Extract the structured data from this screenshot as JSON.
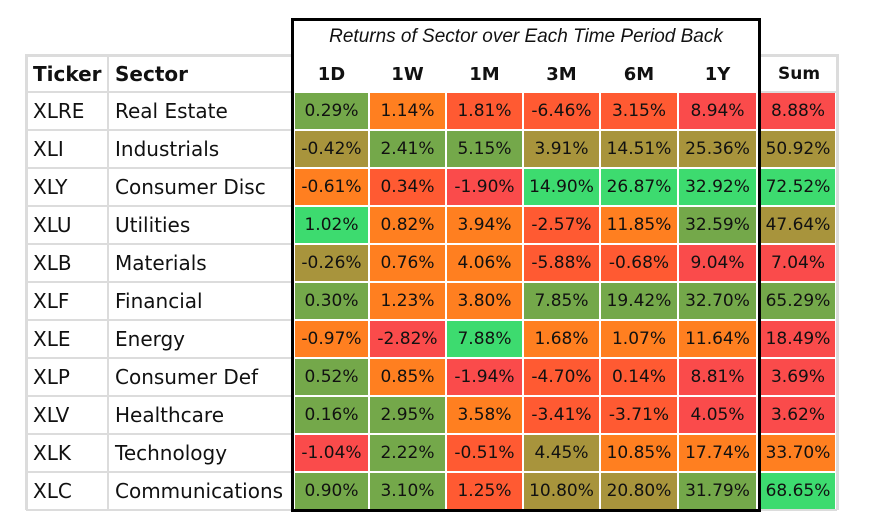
{
  "chart_data": {
    "type": "heatmap",
    "title": "Returns of Sector over Each Time Period Back",
    "row_headers": [
      "Ticker",
      "Sector"
    ],
    "columns": [
      "1D",
      "1W",
      "1M",
      "3M",
      "6M",
      "1Y"
    ],
    "sum_header": "Sum",
    "rows": [
      {
        "ticker": "XLRE",
        "sector": "Real Estate",
        "values": [
          "0.29%",
          "1.14%",
          "1.81%",
          "-6.46%",
          "3.15%",
          "8.94%"
        ],
        "sum": "8.88%"
      },
      {
        "ticker": "XLI",
        "sector": "Industrials",
        "values": [
          "-0.42%",
          "2.41%",
          "5.15%",
          "3.91%",
          "14.51%",
          "25.36%"
        ],
        "sum": "50.92%"
      },
      {
        "ticker": "XLY",
        "sector": "Consumer Disc",
        "values": [
          "-0.61%",
          "0.34%",
          "-1.90%",
          "14.90%",
          "26.87%",
          "32.92%"
        ],
        "sum": "72.52%"
      },
      {
        "ticker": "XLU",
        "sector": "Utilities",
        "values": [
          "1.02%",
          "0.82%",
          "3.94%",
          "-2.57%",
          "11.85%",
          "32.59%"
        ],
        "sum": "47.64%"
      },
      {
        "ticker": "XLB",
        "sector": "Materials",
        "values": [
          "-0.26%",
          "0.76%",
          "4.06%",
          "-5.88%",
          "-0.68%",
          "9.04%"
        ],
        "sum": "7.04%"
      },
      {
        "ticker": "XLF",
        "sector": "Financial",
        "values": [
          "0.30%",
          "1.23%",
          "3.80%",
          "7.85%",
          "19.42%",
          "32.70%"
        ],
        "sum": "65.29%"
      },
      {
        "ticker": "XLE",
        "sector": "Energy",
        "values": [
          "-0.97%",
          "-2.82%",
          "7.88%",
          "1.68%",
          "1.07%",
          "11.64%"
        ],
        "sum": "18.49%"
      },
      {
        "ticker": "XLP",
        "sector": "Consumer Def",
        "values": [
          "0.52%",
          "0.85%",
          "-1.94%",
          "-4.70%",
          "0.14%",
          "8.81%"
        ],
        "sum": "3.69%"
      },
      {
        "ticker": "XLV",
        "sector": "Healthcare",
        "values": [
          "0.16%",
          "2.95%",
          "3.58%",
          "-3.41%",
          "-3.71%",
          "4.05%"
        ],
        "sum": "3.62%"
      },
      {
        "ticker": "XLK",
        "sector": "Technology",
        "values": [
          "-1.04%",
          "2.22%",
          "-0.51%",
          "4.45%",
          "10.85%",
          "17.74%"
        ],
        "sum": "33.70%"
      },
      {
        "ticker": "XLC",
        "sector": "Communications",
        "values": [
          "0.90%",
          "3.10%",
          "1.25%",
          "10.80%",
          "20.80%",
          "31.79%"
        ],
        "sum": "68.65%"
      }
    ],
    "colors": {
      "green": "#3ddb6f",
      "olive_green": "#74a84a",
      "olive": "#a8943c",
      "orange": "#ff7f20",
      "red_orange": "#ff5a32",
      "red": "#fa4b4b"
    },
    "cell_colors": [
      [
        "olive_green",
        "orange",
        "red_orange",
        "red_orange",
        "red_orange",
        "red"
      ],
      [
        "olive",
        "olive_green",
        "olive_green",
        "olive",
        "olive",
        "olive"
      ],
      [
        "orange",
        "red_orange",
        "red",
        "green",
        "green",
        "green"
      ],
      [
        "green",
        "orange",
        "orange",
        "red_orange",
        "orange",
        "olive_green"
      ],
      [
        "olive",
        "orange",
        "orange",
        "red_orange",
        "red_orange",
        "red"
      ],
      [
        "olive_green",
        "orange",
        "orange",
        "olive_green",
        "olive_green",
        "olive_green"
      ],
      [
        "orange",
        "red",
        "green",
        "orange",
        "orange",
        "orange"
      ],
      [
        "olive_green",
        "orange",
        "red",
        "red_orange",
        "red_orange",
        "red"
      ],
      [
        "olive_green",
        "olive_green",
        "orange",
        "red_orange",
        "red_orange",
        "red"
      ],
      [
        "red",
        "olive_green",
        "red_orange",
        "olive",
        "orange",
        "orange"
      ],
      [
        "olive_green",
        "olive_green",
        "red_orange",
        "olive",
        "olive",
        "olive_green"
      ]
    ],
    "sum_colors": [
      "red",
      "olive",
      "green",
      "olive",
      "red",
      "olive_green",
      "red",
      "red",
      "red",
      "orange",
      "green"
    ]
  }
}
